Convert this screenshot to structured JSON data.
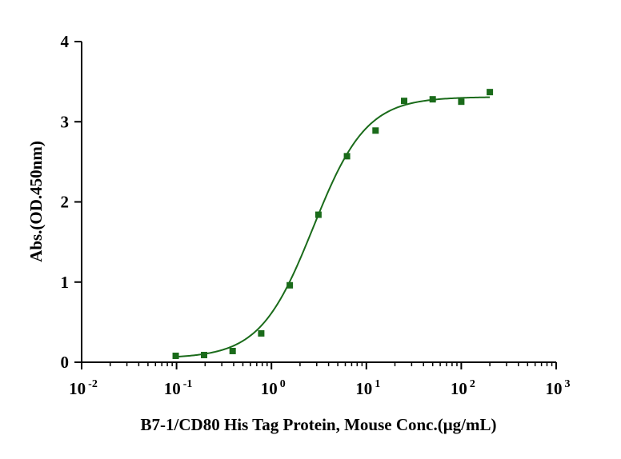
{
  "chart_data": {
    "type": "scatter",
    "title": "",
    "xlabel": "B7-1/CD80 His Tag Protein, Mouse  Conc.(μg/mL)",
    "ylabel": "Abs.(OD.450nm)",
    "x_scale": "log10",
    "xlim": [
      0.01,
      1000
    ],
    "ylim": [
      0,
      4
    ],
    "grid": false,
    "legend": "none",
    "x_ticks": [
      {
        "base": "10",
        "exp": "-2"
      },
      {
        "base": "10",
        "exp": "-1"
      },
      {
        "base": "10",
        "exp": "0"
      },
      {
        "base": "10",
        "exp": "1"
      },
      {
        "base": "10",
        "exp": "2"
      },
      {
        "base": "10",
        "exp": "3"
      }
    ],
    "y_ticks": [
      "0",
      "1",
      "2",
      "3",
      "4"
    ],
    "color": "#1a6b1a",
    "series": [
      {
        "marker": "square",
        "x": [
          0.098,
          0.195,
          0.39,
          0.78,
          1.56,
          3.125,
          6.25,
          12.5,
          25,
          50,
          100,
          200
        ],
        "y": [
          0.08,
          0.09,
          0.14,
          0.36,
          0.96,
          1.84,
          2.57,
          2.89,
          3.26,
          3.28,
          3.25,
          3.37
        ]
      }
    ],
    "fit_curve": {
      "model": "4PL",
      "bottom": 0.05,
      "top": 3.31,
      "ec50": 2.75,
      "hill": 1.55
    }
  }
}
